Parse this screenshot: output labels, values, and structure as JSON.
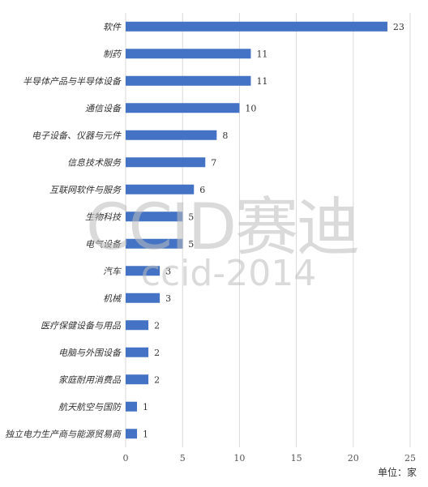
{
  "watermark": {
    "main": "CCID赛迪",
    "sub": "ccid-2014"
  },
  "unit_text": "单位：家",
  "colors": {
    "bar": "#4472c4",
    "grid": "#d9d9d9",
    "watermark": "#bdbdbd"
  },
  "chart_data": {
    "type": "bar",
    "orientation": "horizontal",
    "categories": [
      "软件",
      "制药",
      "半导体产品与半导体设备",
      "通信设备",
      "电子设备、仪器与元件",
      "信息技术服务",
      "互联网软件与服务",
      "生物科技",
      "电气设备",
      "汽车",
      "机械",
      "医疗保健设备与用品",
      "电脑与外围设备",
      "家庭耐用消费品",
      "航天航空与国防",
      "独立电力生产商与能源贸易商"
    ],
    "values": [
      23,
      11,
      11,
      10,
      8,
      7,
      6,
      5,
      5,
      3,
      3,
      2,
      2,
      2,
      1,
      1
    ],
    "xlim": [
      0,
      25
    ],
    "xticks": [
      "0",
      "5",
      "10",
      "15",
      "20",
      "25"
    ],
    "data_labels": true,
    "grid": "vertical",
    "unit": "单位：家"
  }
}
